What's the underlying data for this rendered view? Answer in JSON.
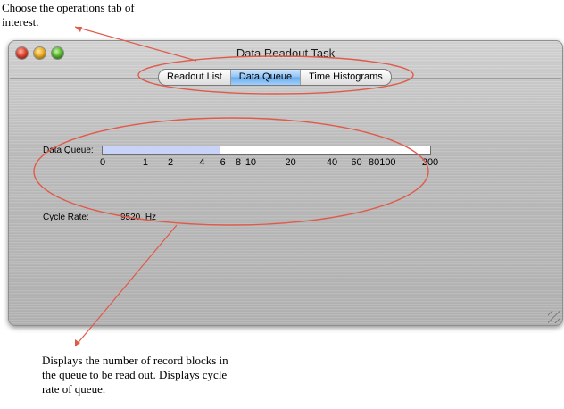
{
  "callouts": {
    "top": "Choose the operations tab of interest.",
    "bottom": "Displays the number of record blocks in the queue to be read out.  Displays cycle rate of queue."
  },
  "window": {
    "title": "Data Readout Task",
    "tabs": [
      {
        "label": "Readout List",
        "active": false
      },
      {
        "label": "Data Queue",
        "active": true
      },
      {
        "label": "Time Histograms",
        "active": false
      }
    ]
  },
  "data_queue": {
    "label": "Data Queue:",
    "fill_fraction": 0.36,
    "scale_ticks": [
      "0",
      "1",
      "2",
      "4",
      "6",
      "8",
      "10",
      "20",
      "40",
      "60",
      "80",
      "100",
      "200"
    ]
  },
  "cycle_rate": {
    "label": "Cycle Rate:",
    "value": "9520",
    "unit": "Hz"
  },
  "colors": {
    "annotation": "#e05a4a",
    "active_tab": "#8ec2f5",
    "queue_fill": "#c9d3f7"
  }
}
